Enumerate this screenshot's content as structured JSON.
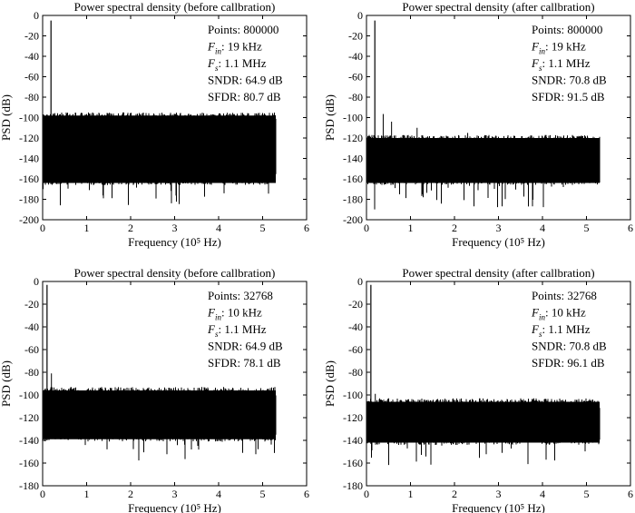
{
  "chart_data": [
    {
      "type": "line",
      "title": "Power spectral density (before callbration)",
      "xlabel": "Frequency (10⁵ Hz)",
      "ylabel": "PSD (dB)",
      "xlim": [
        0,
        6
      ],
      "ylim": [
        -200,
        0
      ],
      "xticks": [
        0,
        1,
        2,
        3,
        4,
        5,
        6
      ],
      "yticks": [
        0,
        -20,
        -40,
        -60,
        -80,
        -100,
        -120,
        -140,
        -160,
        -180,
        -200
      ],
      "annotations": [
        "Points: 800000",
        "F_in: 19 kHz",
        "F_s: 1.1 MHz",
        "SNDR: 64.9 dB",
        "SFDR: 80.7 dB"
      ],
      "spectrum": {
        "f_max": 5.3,
        "signal_freq": 0.19,
        "signal_peak": -5,
        "spur_peak": -85.7,
        "noise_upper": -100,
        "noise_lower": -160,
        "noise_median": -135,
        "noise_min": -188,
        "spurs": [
          [
            0.38,
            -97
          ],
          [
            1.5,
            -96
          ]
        ]
      }
    },
    {
      "type": "line",
      "title": "Power spectral density (after callbration)",
      "xlabel": "Frequency (10⁵ Hz)",
      "ylabel": "PSD (dB)",
      "xlim": [
        0,
        6
      ],
      "ylim": [
        -200,
        0
      ],
      "xticks": [
        0,
        1,
        2,
        3,
        4,
        5,
        6
      ],
      "yticks": [
        0,
        -20,
        -40,
        -60,
        -80,
        -100,
        -120,
        -140,
        -160,
        -180,
        -200
      ],
      "annotations": [
        "Points: 800000",
        "F_in: 19 kHz",
        "F_s: 1.1 MHz",
        "SNDR: 70.8 dB",
        "SFDR: 91.5 dB"
      ],
      "spectrum": {
        "f_max": 5.3,
        "signal_freq": 0.19,
        "signal_peak": -5,
        "spur_peak": -96.5,
        "noise_upper": -122,
        "noise_lower": -160,
        "noise_median": -142,
        "noise_min": -190,
        "spurs": [
          [
            0.38,
            -96.5
          ],
          [
            0.57,
            -104
          ],
          [
            1.15,
            -110
          ],
          [
            2.3,
            -115
          ]
        ]
      }
    },
    {
      "type": "line",
      "title": "Power spectral density (before callbration)",
      "xlabel": "Frequency (10⁵ Hz)",
      "ylabel": "PSD (dB)",
      "xlim": [
        0,
        6
      ],
      "ylim": [
        -180,
        0
      ],
      "xticks": [
        0,
        1,
        2,
        3,
        4,
        5,
        6
      ],
      "yticks": [
        0,
        -20,
        -40,
        -60,
        -80,
        -100,
        -120,
        -140,
        -160,
        -180
      ],
      "annotations": [
        "Points: 32768",
        "F_in: 10 kHz",
        "F_s: 1.1 MHz",
        "SNDR: 64.9 dB",
        "SFDR: 78.1 dB"
      ],
      "spectrum": {
        "f_max": 5.3,
        "signal_freq": 0.1,
        "signal_peak": -3,
        "spur_peak": -81,
        "noise_upper": -98,
        "noise_lower": -135,
        "noise_median": -115,
        "noise_min": -160,
        "spurs": [
          [
            0.2,
            -81
          ],
          [
            0.3,
            -95
          ],
          [
            0.5,
            -100
          ]
        ]
      }
    },
    {
      "type": "line",
      "title": "Power spectral density (after callbration)",
      "xlabel": "Frequency (10⁵ Hz)",
      "ylabel": "PSD (dB)",
      "xlim": [
        0,
        6
      ],
      "ylim": [
        -180,
        0
      ],
      "xticks": [
        0,
        1,
        2,
        3,
        4,
        5,
        6
      ],
      "yticks": [
        0,
        -20,
        -40,
        -60,
        -80,
        -100,
        -120,
        -140,
        -160,
        -180
      ],
      "annotations": [
        "Points: 32768",
        "F_in: 10 kHz",
        "F_s: 1.1 MHz",
        "SNDR: 70.8 dB",
        "SFDR: 96.1 dB"
      ],
      "spectrum": {
        "f_max": 5.3,
        "signal_freq": 0.1,
        "signal_peak": -3,
        "spur_peak": -99,
        "noise_upper": -108,
        "noise_lower": -138,
        "noise_median": -122,
        "noise_min": -163,
        "spurs": [
          [
            0.2,
            -99
          ],
          [
            0.3,
            -103
          ],
          [
            0.45,
            -105
          ],
          [
            0.8,
            -105
          ]
        ]
      }
    }
  ]
}
